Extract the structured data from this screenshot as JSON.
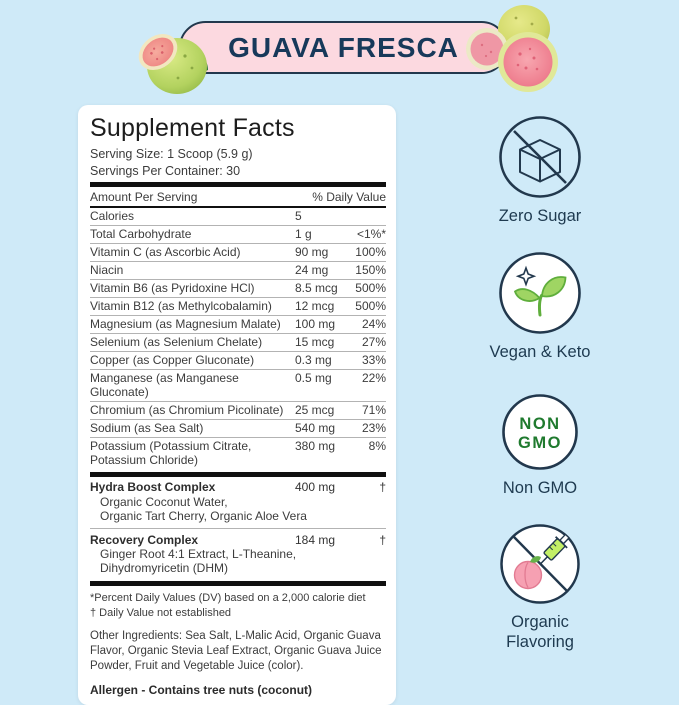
{
  "banner": {
    "title": "GUAVA FRESCA"
  },
  "panel": {
    "title": "Supplement Facts",
    "serving_size": "Serving Size: 1 Scoop (5.9 g)",
    "servings_per_container": "Servings Per Container: 30",
    "columns": {
      "amount": "Amount Per Serving",
      "dv": "% Daily Value"
    },
    "rows": [
      {
        "name": "Calories",
        "amount": "5",
        "dv": ""
      },
      {
        "name": "Total Carbohydrate",
        "amount": "1 g",
        "dv": "<1%*"
      },
      {
        "name": "Vitamin C (as Ascorbic Acid)",
        "amount": "90 mg",
        "dv": "100%"
      },
      {
        "name": "Niacin",
        "amount": "24 mg",
        "dv": "150%"
      },
      {
        "name": "Vitamin B6 (as Pyridoxine HCl)",
        "amount": "8.5 mcg",
        "dv": "500%"
      },
      {
        "name": "Vitamin B12 (as Methylcobalamin)",
        "amount": "12 mcg",
        "dv": "500%"
      },
      {
        "name": "Magnesium (as Magnesium Malate)",
        "amount": "100 mg",
        "dv": "24%"
      },
      {
        "name": "Selenium (as Selenium Chelate)",
        "amount": "15 mcg",
        "dv": "27%"
      },
      {
        "name": "Copper (as Copper Gluconate)",
        "amount": "0.3 mg",
        "dv": "33%"
      },
      {
        "name": "Manganese (as Manganese Gluconate)",
        "amount": "0.5 mg",
        "dv": "22%"
      },
      {
        "name": "Chromium (as Chromium Picolinate)",
        "amount": "25 mcg",
        "dv": "71%"
      },
      {
        "name": "Sodium (as Sea Salt)",
        "amount": "540 mg",
        "dv": "23%"
      },
      {
        "name": "Potassium (Potassium Citrate, Potassium Chloride)",
        "amount": "380 mg",
        "dv": "8%"
      }
    ],
    "complexes": [
      {
        "name": "Hydra Boost Complex",
        "amount": "400 mg",
        "dv": "†",
        "sub": [
          "Organic Coconut Water,",
          "Organic Tart Cherry, Organic Aloe Vera"
        ]
      },
      {
        "name": "Recovery Complex",
        "amount": "184 mg",
        "dv": "†",
        "sub": [
          "Ginger Root 4:1 Extract, L-Theanine,",
          "Dihydromyricetin (DHM)"
        ]
      }
    ],
    "footnotes": [
      "*Percent Daily Values (DV) based on a 2,000 calorie diet",
      "† Daily Value not established"
    ],
    "other_ingredients": "Other Ingredients: Sea Salt, L-Malic Acid, Organic Guava Flavor, Organic Stevia Leaf Extract, Organic Guava Juice Powder, Fruit and Vegetable Juice (color).",
    "allergen": "Allergen - Contains tree nuts (coconut)"
  },
  "badges": [
    {
      "icon": "zero-sugar-icon",
      "label": "Zero Sugar"
    },
    {
      "icon": "vegan-keto-icon",
      "label": "Vegan & Keto"
    },
    {
      "icon": "non-gmo-icon",
      "label": "Non GMO",
      "icon_lines": [
        "NON",
        "GMO"
      ]
    },
    {
      "icon": "organic-flavoring-icon",
      "label": "Organic Flavoring"
    }
  ],
  "colors": {
    "background": "#cfeaf8",
    "banner_pink": "#fcd9e0",
    "outline_navy": "#22384d",
    "text_navy": "#17395a",
    "non_gmo_green": "#1f7a2e",
    "leaf_green": "#5fae3c",
    "guava_flesh_pink": "#ef8f9e"
  }
}
